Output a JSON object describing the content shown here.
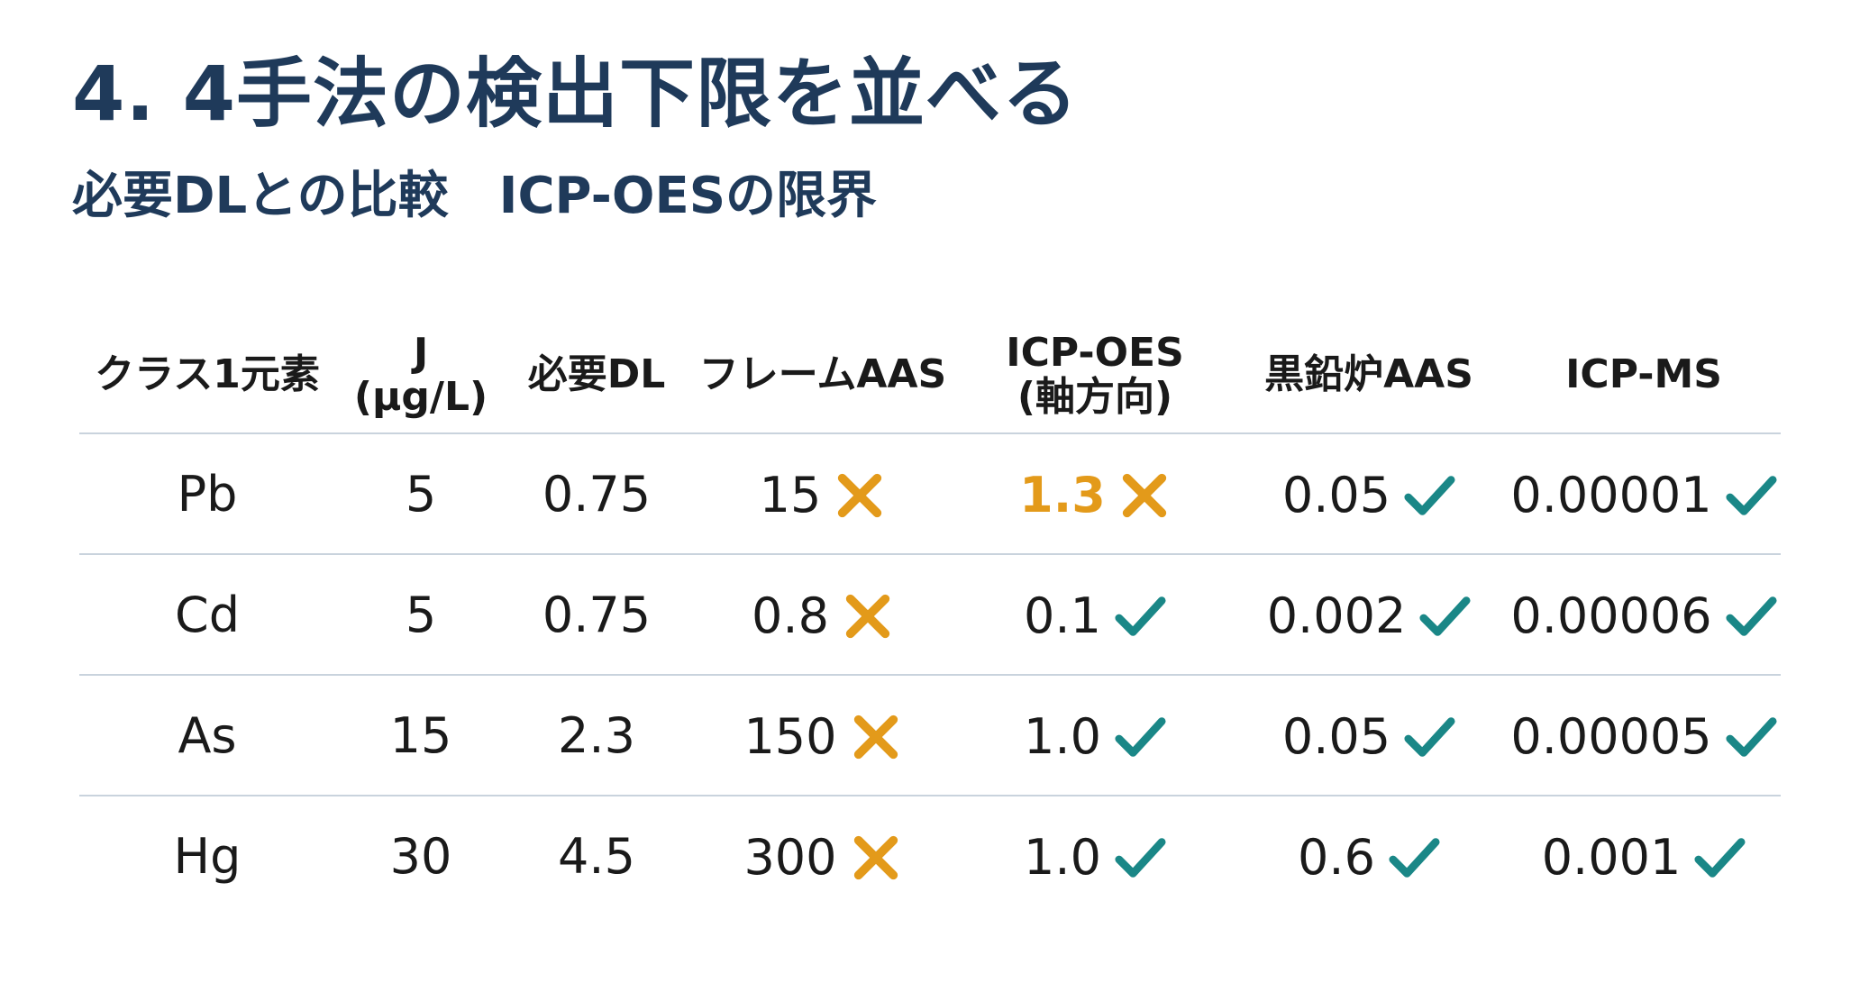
{
  "title": "4. 4手法の検出下限を並べる",
  "subtitle": "必要DLとの比較　ICP-OESの限界",
  "colors": {
    "title": "#1f3a5a",
    "cross": "#e39a1a",
    "check": "#1a8787",
    "highlight": "#e39a1a",
    "rule": "#c9d3dd"
  },
  "table": {
    "headers": [
      [
        "クラス1元素"
      ],
      [
        "J",
        "(µg/L)"
      ],
      [
        "必要DL"
      ],
      [
        "フレームAAS"
      ],
      [
        "ICP-OES",
        "(軸方向)"
      ],
      [
        "黒鉛炉AAS"
      ],
      [
        "ICP-MS"
      ]
    ],
    "rows": [
      {
        "element": "Pb",
        "j": "5",
        "required_dl": "0.75",
        "methods": [
          {
            "value": "15",
            "mark": "cross-icon",
            "highlight": false
          },
          {
            "value": "1.3",
            "mark": "cross-icon",
            "highlight": true
          },
          {
            "value": "0.05",
            "mark": "check-icon",
            "highlight": false
          },
          {
            "value": "0.00001",
            "mark": "check-icon",
            "highlight": false
          }
        ]
      },
      {
        "element": "Cd",
        "j": "5",
        "required_dl": "0.75",
        "methods": [
          {
            "value": "0.8",
            "mark": "cross-icon",
            "highlight": false
          },
          {
            "value": "0.1",
            "mark": "check-icon",
            "highlight": false
          },
          {
            "value": "0.002",
            "mark": "check-icon",
            "highlight": false
          },
          {
            "value": "0.00006",
            "mark": "check-icon",
            "highlight": false
          }
        ]
      },
      {
        "element": "As",
        "j": "15",
        "required_dl": "2.3",
        "methods": [
          {
            "value": "150",
            "mark": "cross-icon",
            "highlight": false
          },
          {
            "value": "1.0",
            "mark": "check-icon",
            "highlight": false
          },
          {
            "value": "0.05",
            "mark": "check-icon",
            "highlight": false
          },
          {
            "value": "0.00005",
            "mark": "check-icon",
            "highlight": false
          }
        ]
      },
      {
        "element": "Hg",
        "j": "30",
        "required_dl": "4.5",
        "methods": [
          {
            "value": "300",
            "mark": "cross-icon",
            "highlight": false
          },
          {
            "value": "1.0",
            "mark": "check-icon",
            "highlight": false
          },
          {
            "value": "0.6",
            "mark": "check-icon",
            "highlight": false
          },
          {
            "value": "0.001",
            "mark": "check-icon",
            "highlight": false
          }
        ]
      }
    ]
  }
}
